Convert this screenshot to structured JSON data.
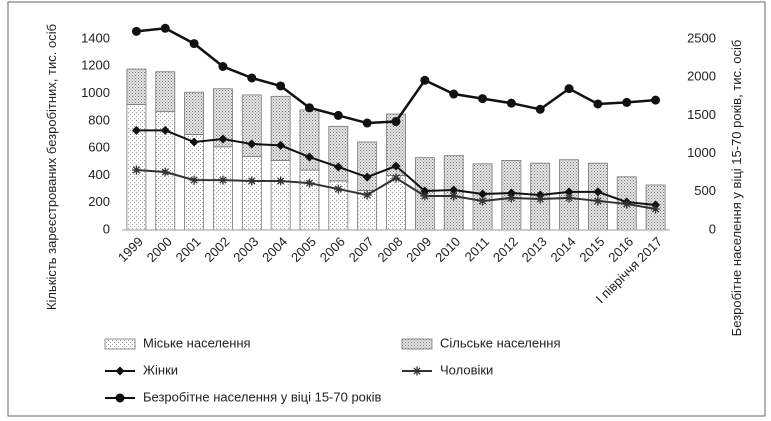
{
  "chart_data": {
    "type": "bar",
    "stacked": true,
    "y_label": "Кількість зареєстрованих безробітних, тис. осіб",
    "y2_label": "Безробітне населення у віці 15-70 років, тис. осіб",
    "categories": [
      "1999",
      "2000",
      "2001",
      "2002",
      "2003",
      "2004",
      "2005",
      "2006",
      "2007",
      "2008",
      "2009",
      "2010",
      "2011",
      "2012",
      "2013",
      "2014",
      "2015",
      "2016",
      "І півріччя 2017"
    ],
    "ylim": [
      0,
      1400
    ],
    "yticks": [
      0,
      200,
      400,
      600,
      800,
      1000,
      1200,
      1400
    ],
    "y2lim": [
      0,
      2500
    ],
    "y2ticks": [
      0,
      500,
      1000,
      1500,
      2000,
      2500
    ],
    "series": [
      {
        "name": "Міське  населення",
        "type": "bar",
        "color": "#ffffff",
        "pattern": "sparse-dots",
        "values": [
          920,
          870,
          700,
          610,
          540,
          510,
          440,
          360,
          290,
          400,
          null,
          null,
          null,
          null,
          null,
          null,
          null,
          null,
          null
        ]
      },
      {
        "name": "Сільське населення",
        "type": "bar",
        "color": "#e8e8e8",
        "pattern": "dense-dots",
        "values": [
          260,
          290,
          310,
          425,
          450,
          470,
          440,
          400,
          355,
          450,
          530,
          545,
          485,
          510,
          490,
          515,
          490,
          390,
          330
        ]
      },
      {
        "name": "Жінки",
        "type": "line",
        "color": "#111111",
        "marker": "diamond",
        "values": [
          730,
          730,
          645,
          667,
          630,
          620,
          535,
          462,
          388,
          469,
          286,
          293,
          264,
          271,
          257,
          279,
          279,
          205,
          183
        ]
      },
      {
        "name": "Чоловіки",
        "type": "line",
        "color": "#333333",
        "marker": "asterisk",
        "values": [
          440,
          425,
          366,
          366,
          359,
          359,
          344,
          300,
          257,
          381,
          249,
          249,
          213,
          235,
          227,
          235,
          213,
          191,
          154
        ]
      },
      {
        "name": "Безробітне населення у віці 15-70 років",
        "type": "line",
        "color": "#111111",
        "marker": "circle",
        "axis": "y2",
        "values": [
          2600,
          2640,
          2440,
          2140,
          1990,
          1885,
          1600,
          1500,
          1400,
          1420,
          1960,
          1780,
          1720,
          1660,
          1580,
          1850,
          1650,
          1670,
          1700
        ]
      }
    ]
  }
}
